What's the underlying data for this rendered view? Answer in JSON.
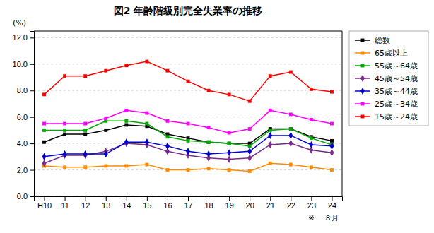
{
  "chart_data": {
    "type": "line",
    "title": "図2 年齢階級別完全失業率の推移",
    "ylabel": "(%)",
    "categories": [
      "H10",
      "11",
      "12",
      "13",
      "14",
      "15",
      "16",
      "17",
      "18",
      "19",
      "20",
      "21",
      "22",
      "23",
      "24"
    ],
    "annotations": [
      {
        "text": "※",
        "x": "23"
      },
      {
        "text": "８月",
        "x": "24"
      }
    ],
    "ylim": [
      0.0,
      12.5
    ],
    "yticks": [
      {
        "value": 0.0,
        "label": "0.0"
      },
      {
        "value": 2.0,
        "label": "2.0"
      },
      {
        "value": 4.0,
        "label": "4.0"
      },
      {
        "value": 6.0,
        "label": "6.0"
      },
      {
        "value": 8.0,
        "label": "8.0"
      },
      {
        "value": 10.0,
        "label": "10.0"
      },
      {
        "value": 12.0,
        "label": "12.0"
      }
    ],
    "grid": true,
    "legend": "right",
    "series": [
      {
        "name": "総数",
        "color": "#000000",
        "marker": "square",
        "values": [
          4.1,
          4.7,
          4.7,
          5.0,
          5.4,
          5.3,
          4.7,
          4.4,
          4.1,
          4.0,
          4.0,
          5.1,
          5.1,
          4.5,
          4.2
        ]
      },
      {
        "name": "65歳以上",
        "color": "#ff8c00",
        "marker": "square",
        "values": [
          2.3,
          2.2,
          2.2,
          2.3,
          2.3,
          2.4,
          2.0,
          2.0,
          2.1,
          2.0,
          1.9,
          2.5,
          2.4,
          2.2,
          2.0
        ]
      },
      {
        "name": "55歳～64歳",
        "color": "#00aa00",
        "marker": "square",
        "values": [
          5.0,
          5.0,
          5.0,
          5.7,
          5.7,
          5.5,
          4.5,
          4.2,
          4.1,
          4.0,
          3.8,
          5.0,
          5.1,
          4.4,
          3.9
        ]
      },
      {
        "name": "45歳～54歳",
        "color": "#7b2c8b",
        "marker": "diamond",
        "values": [
          2.5,
          3.1,
          3.1,
          3.4,
          4.0,
          3.9,
          3.4,
          3.1,
          2.9,
          2.8,
          2.9,
          3.9,
          4.0,
          3.5,
          3.3
        ]
      },
      {
        "name": "35歳～44歳",
        "color": "#0000cc",
        "marker": "diamond",
        "values": [
          3.0,
          3.2,
          3.2,
          3.2,
          4.1,
          4.1,
          3.8,
          3.4,
          3.2,
          3.3,
          3.4,
          4.6,
          4.6,
          3.9,
          3.8
        ]
      },
      {
        "name": "25歳～34歳",
        "color": "#ff00ff",
        "marker": "square",
        "values": [
          5.5,
          5.5,
          5.5,
          5.9,
          6.5,
          6.3,
          5.7,
          5.5,
          5.2,
          4.8,
          5.1,
          6.5,
          6.2,
          5.8,
          5.5
        ]
      },
      {
        "name": "15歳～24歳",
        "color": "#ff0000",
        "marker": "square",
        "values": [
          7.7,
          9.1,
          9.1,
          9.5,
          9.9,
          10.2,
          9.5,
          8.7,
          8.0,
          7.7,
          7.2,
          9.1,
          9.4,
          8.1,
          7.9
        ]
      }
    ]
  }
}
